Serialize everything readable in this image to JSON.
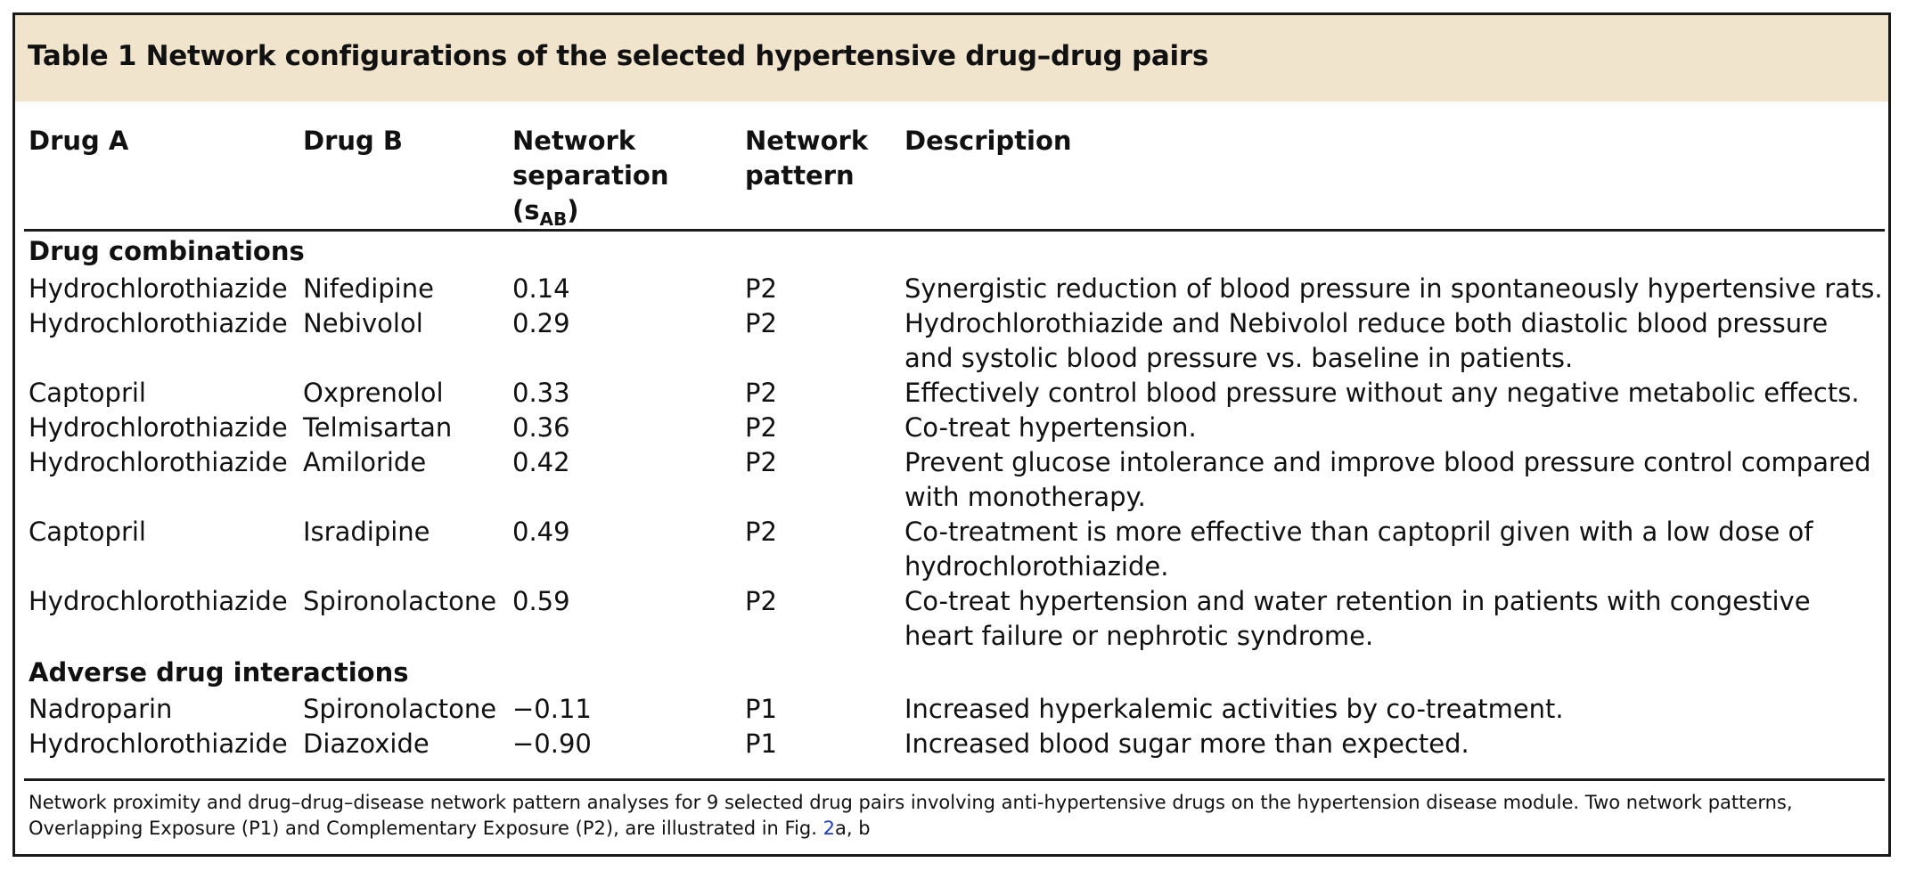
{
  "table": {
    "title": "Table 1 Network configurations of the selected hypertensive drug–drug pairs",
    "headers": {
      "drug_a": "Drug A",
      "drug_b": "Drug B",
      "separation_line1": "Network",
      "separation_line2": "separation",
      "separation_line3_prefix": "(s",
      "separation_sub": "AB",
      "separation_line3_suffix": ")",
      "pattern_line1": "Network",
      "pattern_line2": "pattern",
      "description": "Description"
    },
    "sections": [
      {
        "label": "Drug combinations",
        "rows": [
          {
            "drug_a": "Hydrochlorothiazide",
            "drug_b": "Nifedipine",
            "separation": "0.14",
            "pattern": "P2",
            "description": "Synergistic reduction of blood pressure in spontaneously hypertensive rats."
          },
          {
            "drug_a": "Hydrochlorothiazide",
            "drug_b": "Nebivolol",
            "separation": "0.29",
            "pattern": "P2",
            "description": "Hydrochlorothiazide and Nebivolol reduce both diastolic blood pressure and systolic blood pressure vs. baseline in patients."
          },
          {
            "drug_a": "Captopril",
            "drug_b": "Oxprenolol",
            "separation": "0.33",
            "pattern": "P2",
            "description": "Effectively control blood pressure without any negative metabolic effects."
          },
          {
            "drug_a": "Hydrochlorothiazide",
            "drug_b": "Telmisartan",
            "separation": "0.36",
            "pattern": "P2",
            "description": "Co-treat hypertension."
          },
          {
            "drug_a": "Hydrochlorothiazide",
            "drug_b": "Amiloride",
            "separation": "0.42",
            "pattern": "P2",
            "description": "Prevent glucose intolerance and improve blood pressure control compared with monotherapy."
          },
          {
            "drug_a": "Captopril",
            "drug_b": "Isradipine",
            "separation": "0.49",
            "pattern": "P2",
            "description": "Co-treatment is more effective than captopril given with a low dose of hydrochlorothiazide."
          },
          {
            "drug_a": "Hydrochlorothiazide",
            "drug_b": "Spironolactone",
            "separation": "0.59",
            "pattern": "P2",
            "description": "Co-treat hypertension and water retention in patients with congestive heart failure or nephrotic syndrome."
          }
        ]
      },
      {
        "label": "Adverse drug interactions",
        "rows": [
          {
            "drug_a": "Nadroparin",
            "drug_b": "Spironolactone",
            "separation": "−0.11",
            "pattern": "P1",
            "description": "Increased hyperkalemic activities by co-treatment."
          },
          {
            "drug_a": "Hydrochlorothiazide",
            "drug_b": "Diazoxide",
            "separation": "−0.90",
            "pattern": "P1",
            "description": "Increased blood sugar more than expected."
          }
        ]
      }
    ],
    "footnote": {
      "text_before": "Network proximity and drug–drug–disease network pattern analyses for 9 selected drug pairs involving anti-hypertensive drugs on the hypertension disease module. Two network patterns, Overlapping Exposure (P1) and Complementary Exposure (P2), are illustrated in Fig. ",
      "link": "2",
      "text_after": "a, b"
    }
  }
}
